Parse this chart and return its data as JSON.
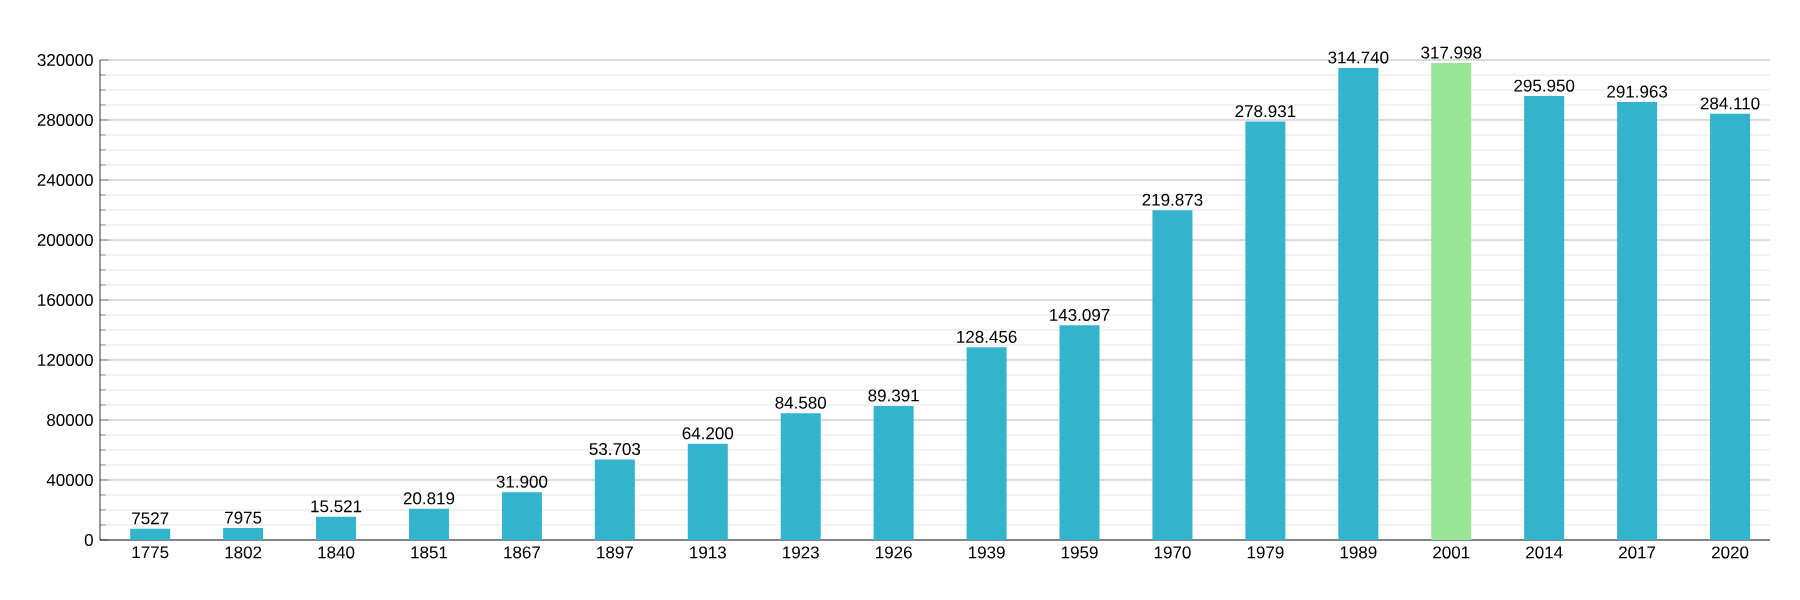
{
  "chart_data": {
    "type": "bar",
    "categories": [
      "1775",
      "1802",
      "1840",
      "1851",
      "1867",
      "1897",
      "1913",
      "1923",
      "1926",
      "1939",
      "1959",
      "1970",
      "1979",
      "1989",
      "2001",
      "2014",
      "2017",
      "2020"
    ],
    "values": [
      7527,
      7975,
      15521,
      20819,
      31900,
      53703,
      64200,
      84580,
      89391,
      128456,
      143097,
      219873,
      278931,
      314740,
      317998,
      295950,
      291963,
      284110
    ],
    "value_labels": [
      "7527",
      "7975",
      "15.521",
      "20.819",
      "31.900",
      "53.703",
      "64.200",
      "84.580",
      "89.391",
      "128.456",
      "143.097",
      "219.873",
      "278.931",
      "314.740",
      "317.998",
      "295.950",
      "291.963",
      "284.110"
    ],
    "colors": [
      "#33b3cc",
      "#33b3cc",
      "#33b3cc",
      "#33b3cc",
      "#33b3cc",
      "#33b3cc",
      "#33b3cc",
      "#33b3cc",
      "#33b3cc",
      "#33b3cc",
      "#33b3cc",
      "#33b3cc",
      "#33b3cc",
      "#33b3cc",
      "#99e699",
      "#33b3cc",
      "#33b3cc",
      "#33b3cc"
    ],
    "ylim": [
      0,
      320000
    ],
    "yticks": [
      0,
      40000,
      80000,
      120000,
      160000,
      200000,
      240000,
      280000,
      320000
    ],
    "grid": "y"
  }
}
